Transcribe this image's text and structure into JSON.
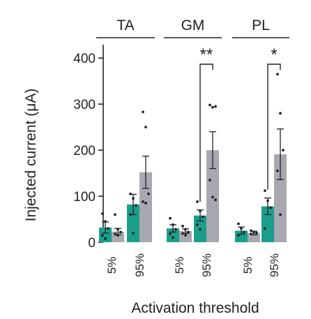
{
  "chart_data": {
    "type": "bar",
    "ylabel": "Injected current (μA)",
    "xlabel": "Activation threshold",
    "ylim": [
      0,
      420
    ],
    "yticks": [
      0,
      100,
      200,
      300,
      400
    ],
    "grid": false,
    "colors": {
      "5%": "#1a9e8c",
      "95%": "#a8a8b0"
    },
    "groups": [
      {
        "name": "TA",
        "categories": [
          {
            "label": "5%",
            "bars": [
              {
                "color_key": "5%",
                "mean": 32,
                "sem": 12,
                "points": [
                  62,
                  45,
                  30,
                  15,
                  8
                ]
              },
              {
                "color_key": "95%",
                "mean": 23,
                "sem": 7,
                "points": [
                  60,
                  28,
                  22,
                  18,
                  15
                ]
              }
            ]
          },
          {
            "label": "95%",
            "bars": [
              {
                "color_key": "5%",
                "mean": 82,
                "sem": 22,
                "points": [
                  105,
                  95,
                  80,
                  60,
                  20
                ]
              },
              {
                "color_key": "95%",
                "mean": 152,
                "sem": 35,
                "points": [
                  283,
                  250,
                  105,
                  88,
                  85
                ]
              }
            ]
          }
        ]
      },
      {
        "name": "GM",
        "categories": [
          {
            "label": "5%",
            "bars": [
              {
                "color_key": "5%",
                "mean": 30,
                "sem": 8,
                "points": [
                  52,
                  38,
                  28,
                  18,
                  10
                ]
              },
              {
                "color_key": "95%",
                "mean": 24,
                "sem": 5,
                "points": [
                  35,
                  28,
                  22,
                  19,
                  15
                ]
              }
            ]
          },
          {
            "label": "95%",
            "bars": [
              {
                "color_key": "5%",
                "mean": 58,
                "sem": 12,
                "points": [
                  88,
                  68,
                  55,
                  38,
                  28
                ]
              },
              {
                "color_key": "95%",
                "mean": 200,
                "sem": 40,
                "points": [
                  298,
                  293,
                  295,
                  135,
                  98,
                  92
                ]
              }
            ]
          }
        ],
        "significance": "**"
      },
      {
        "name": "PL",
        "categories": [
          {
            "label": "5%",
            "bars": [
              {
                "color_key": "5%",
                "mean": 25,
                "sem": 8,
                "points": [
                  40,
                  30,
                  22,
                  15
                ]
              },
              {
                "color_key": "95%",
                "mean": 20,
                "sem": 4,
                "points": [
                  25,
                  22,
                  20,
                  18
                ]
              }
            ]
          },
          {
            "label": "95%",
            "bars": [
              {
                "color_key": "5%",
                "mean": 78,
                "sem": 18,
                "points": [
                  112,
                  90,
                  75,
                  30
                ]
              },
              {
                "color_key": "95%",
                "mean": 191,
                "sem": 55,
                "points": [
                  365,
                  280,
                  200,
                  155,
                  60
                ]
              }
            ]
          }
        ],
        "significance": "*"
      }
    ]
  }
}
